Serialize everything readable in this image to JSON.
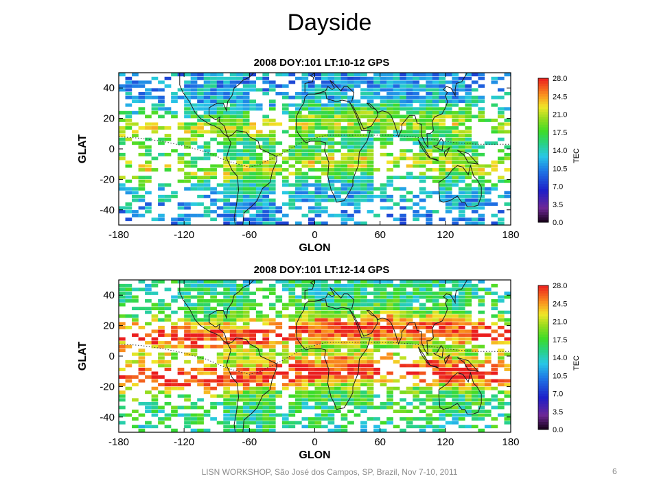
{
  "slide": {
    "title": "Dayside",
    "footer": "LISN WORKSHOP, São José dos Campos, SP, Brazil, Nov 7-10, 2011",
    "page_number": "6"
  },
  "chart_data": [
    {
      "type": "heatmap",
      "title": "2008 DOY:101  LT:10-12 GPS",
      "xlabel": "GLON",
      "ylabel": "GLAT",
      "xlim": [
        -180,
        180
      ],
      "ylim": [
        -50,
        50
      ],
      "xticks": [
        "-180",
        "-120",
        "-60",
        "0",
        "60",
        "120",
        "180"
      ],
      "xtick_values": [
        -180,
        -120,
        -60,
        0,
        60,
        120,
        180
      ],
      "yticks": [
        "40",
        "20",
        "0",
        "-20",
        "-40"
      ],
      "ytick_values": [
        40,
        20,
        0,
        -20,
        -40
      ],
      "colorbar": {
        "label": "TEC",
        "range": [
          0,
          28
        ],
        "ticks": [
          "28.0",
          "24.5",
          "21.0",
          "17.5",
          "14.0",
          "10.5",
          "7.0",
          "3.5",
          "0.0"
        ],
        "tick_values": [
          28,
          24.5,
          21,
          17.5,
          14,
          10.5,
          7,
          3.5,
          0
        ]
      },
      "overlays": [
        "continent coastlines",
        "magnetic equator (dotted)"
      ]
    },
    {
      "type": "heatmap",
      "title": "2008 DOY:101  LT:12-14 GPS",
      "xlabel": "GLON",
      "ylabel": "GLAT",
      "xlim": [
        -180,
        180
      ],
      "ylim": [
        -50,
        50
      ],
      "xticks": [
        "-180",
        "-120",
        "-60",
        "0",
        "60",
        "120",
        "180"
      ],
      "xtick_values": [
        -180,
        -120,
        -60,
        0,
        60,
        120,
        180
      ],
      "yticks": [
        "40",
        "20",
        "0",
        "-20",
        "-40"
      ],
      "ytick_values": [
        40,
        20,
        0,
        -20,
        -40
      ],
      "colorbar": {
        "label": "TEC",
        "range": [
          0,
          28
        ],
        "ticks": [
          "28.0",
          "24.5",
          "21.0",
          "17.5",
          "14.0",
          "10.5",
          "7.0",
          "3.5",
          "0.0"
        ],
        "tick_values": [
          28,
          24.5,
          21,
          17.5,
          14,
          10.5,
          7,
          3.5,
          0
        ]
      },
      "overlays": [
        "continent coastlines",
        "magnetic equator (dotted)"
      ]
    }
  ]
}
